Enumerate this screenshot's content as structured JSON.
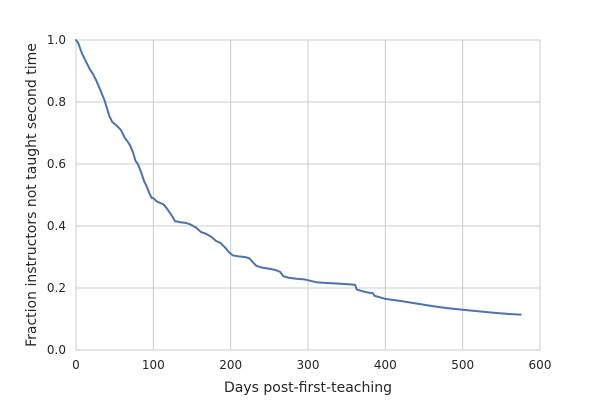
{
  "chart_data": {
    "type": "line",
    "title": "",
    "xlabel": "Days post-first-teaching",
    "ylabel": "Fraction instructors not taught second time",
    "xlim": [
      0,
      600
    ],
    "ylim": [
      0.0,
      1.0
    ],
    "xticks": [
      0,
      100,
      200,
      300,
      400,
      500,
      600
    ],
    "xtick_labels": [
      "0",
      "100",
      "200",
      "300",
      "400",
      "500",
      "600"
    ],
    "yticks": [
      0.0,
      0.2,
      0.4,
      0.6,
      0.8,
      1.0
    ],
    "ytick_labels": [
      "0.0",
      "0.2",
      "0.4",
      "0.6",
      "0.8",
      "1.0"
    ],
    "grid": true,
    "legend": false,
    "colors": {
      "line": "#4c72b0",
      "grid": "#cccccc",
      "frame": "#cccccc",
      "text": "#262626"
    },
    "series": [
      {
        "x": [
          0,
          3,
          5,
          8,
          12,
          15,
          18,
          22,
          27,
          32,
          37,
          40,
          43,
          47,
          52,
          58,
          63,
          66,
          70,
          74,
          77,
          80,
          84,
          86,
          88,
          91,
          95,
          98,
          100,
          104,
          108,
          113,
          118,
          122,
          126,
          128,
          130,
          135,
          142,
          148,
          155,
          162,
          168,
          175,
          181,
          187,
          193,
          198,
          203,
          210,
          218,
          224,
          228,
          233,
          240,
          250,
          258,
          264,
          268,
          275,
          285,
          295,
          305,
          312,
          325,
          340,
          352,
          358,
          361,
          363,
          370,
          378,
          384,
          386,
          390,
          400,
          420,
          440,
          460,
          480,
          500,
          520,
          540,
          560,
          575
        ],
        "y": [
          1.0,
          0.99,
          0.975,
          0.955,
          0.935,
          0.92,
          0.905,
          0.89,
          0.865,
          0.835,
          0.805,
          0.78,
          0.755,
          0.735,
          0.725,
          0.71,
          0.685,
          0.675,
          0.66,
          0.635,
          0.61,
          0.6,
          0.575,
          0.56,
          0.545,
          0.53,
          0.505,
          0.49,
          0.49,
          0.48,
          0.475,
          0.47,
          0.455,
          0.44,
          0.425,
          0.415,
          0.415,
          0.412,
          0.41,
          0.405,
          0.395,
          0.38,
          0.375,
          0.365,
          0.352,
          0.345,
          0.33,
          0.315,
          0.305,
          0.302,
          0.3,
          0.296,
          0.285,
          0.272,
          0.266,
          0.262,
          0.258,
          0.252,
          0.238,
          0.233,
          0.23,
          0.228,
          0.222,
          0.218,
          0.216,
          0.214,
          0.212,
          0.211,
          0.21,
          0.195,
          0.19,
          0.185,
          0.183,
          0.175,
          0.172,
          0.165,
          0.158,
          0.15,
          0.142,
          0.135,
          0.13,
          0.125,
          0.12,
          0.116,
          0.114
        ]
      }
    ]
  }
}
